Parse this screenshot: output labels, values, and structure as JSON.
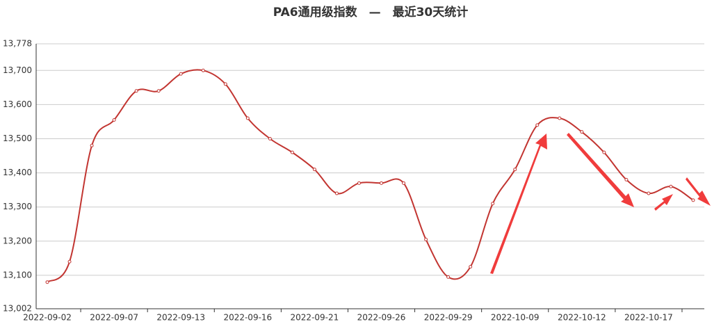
{
  "chart_data": {
    "type": "line",
    "title": "PA6通用级指数　—　最近30天统计",
    "categories": [
      "2022-09-02",
      null,
      null,
      "2022-09-07",
      null,
      null,
      "2022-09-13",
      null,
      null,
      "2022-09-16",
      null,
      null,
      "2022-09-21",
      null,
      null,
      "2022-09-26",
      null,
      null,
      "2022-09-29",
      null,
      null,
      "2022-10-09",
      null,
      null,
      "2022-10-12",
      null,
      null,
      "2022-10-17",
      null,
      null
    ],
    "series": [
      {
        "color": "#c23531",
        "values": [
          13080,
          13140,
          13480,
          13555,
          13640,
          13640,
          13690,
          13700,
          13660,
          13560,
          13500,
          13460,
          13410,
          13340,
          13370,
          13370,
          13370,
          13205,
          13095,
          13125,
          13310,
          13410,
          13540,
          13560,
          13520,
          13460,
          13380,
          13340,
          13360,
          13320
        ]
      }
    ],
    "ylim": [
      13002,
      13778
    ],
    "yticks": [
      {
        "value": 13002,
        "label": "13,002"
      },
      {
        "value": 13100,
        "label": "13,100"
      },
      {
        "value": 13200,
        "label": "13,200"
      },
      {
        "value": 13300,
        "label": "13,300"
      },
      {
        "value": 13400,
        "label": "13,400"
      },
      {
        "value": 13500,
        "label": "13,500"
      },
      {
        "value": 13600,
        "label": "13,600"
      },
      {
        "value": 13700,
        "label": "13,700"
      },
      {
        "value": 13778,
        "label": "13,778"
      }
    ],
    "grid": true,
    "smooth": true
  }
}
